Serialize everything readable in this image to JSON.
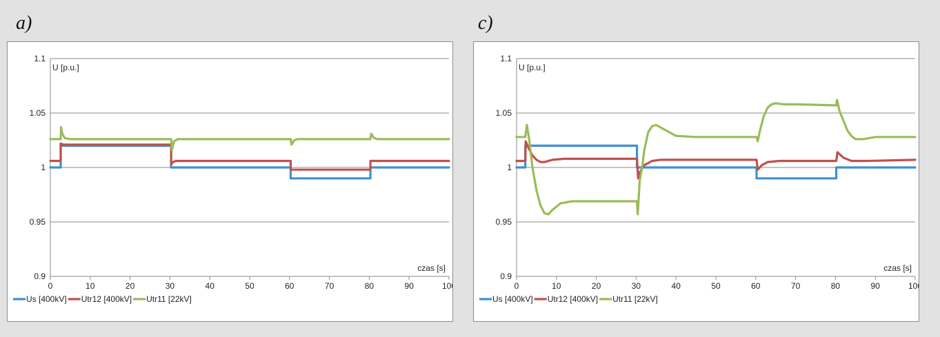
{
  "chart_data": [
    {
      "panel_label": "a)",
      "type": "line",
      "ylabel": "U [p.u.]",
      "xlabel": "czas [s]",
      "xlim": [
        0,
        100
      ],
      "ylim": [
        0.9,
        1.1
      ],
      "xticks": [
        0,
        10,
        20,
        30,
        40,
        50,
        60,
        70,
        80,
        90,
        100
      ],
      "yticks": [
        0.9,
        0.95,
        1,
        1.05,
        1.1
      ],
      "ytick_labels": [
        "0.9",
        "0.95",
        "1",
        "1.05",
        "1.1"
      ],
      "grid": "horizontal",
      "legend_position": "bottom-left",
      "series": [
        {
          "name": "Us [400kV]",
          "color": "#3f8fd2",
          "points": [
            [
              0,
              1.0
            ],
            [
              2.6,
              1.0
            ],
            [
              2.6,
              1.02
            ],
            [
              30.3,
              1.02
            ],
            [
              30.3,
              1.0
            ],
            [
              60.3,
              1.0
            ],
            [
              60.3,
              0.99
            ],
            [
              80.3,
              0.99
            ],
            [
              80.3,
              1.0
            ],
            [
              100,
              1.0
            ]
          ]
        },
        {
          "name": "Utr12 [400kV]",
          "color": "#c0504d",
          "points": [
            [
              0,
              1.006
            ],
            [
              2.6,
              1.006
            ],
            [
              2.6,
              1.022
            ],
            [
              3.2,
              1.021
            ],
            [
              30.3,
              1.021
            ],
            [
              30.3,
              1.003
            ],
            [
              30.8,
              1.005
            ],
            [
              31.5,
              1.006
            ],
            [
              60.3,
              1.006
            ],
            [
              60.3,
              0.998
            ],
            [
              60.8,
              0.998
            ],
            [
              80.3,
              0.998
            ],
            [
              80.3,
              1.006
            ],
            [
              80.8,
              1.006
            ],
            [
              100,
              1.006
            ]
          ]
        },
        {
          "name": "Utr11 [22kV]",
          "color": "#9bbb59",
          "points": [
            [
              0,
              1.026
            ],
            [
              2.6,
              1.026
            ],
            [
              2.7,
              1.037
            ],
            [
              3.0,
              1.031
            ],
            [
              3.6,
              1.027
            ],
            [
              5,
              1.026
            ],
            [
              30.3,
              1.026
            ],
            [
              30.5,
              1.016
            ],
            [
              31.0,
              1.024
            ],
            [
              32,
              1.026
            ],
            [
              60.3,
              1.026
            ],
            [
              60.5,
              1.021
            ],
            [
              61.2,
              1.025
            ],
            [
              62,
              1.026
            ],
            [
              80.3,
              1.026
            ],
            [
              80.5,
              1.031
            ],
            [
              81.2,
              1.027
            ],
            [
              82,
              1.026
            ],
            [
              100,
              1.026
            ]
          ]
        }
      ]
    },
    {
      "panel_label": "c)",
      "type": "line",
      "ylabel": "U [p.u.]",
      "xlabel": "czas [s]",
      "xlim": [
        0,
        100
      ],
      "ylim": [
        0.9,
        1.1
      ],
      "xticks": [
        0,
        10,
        20,
        30,
        40,
        50,
        60,
        70,
        80,
        90,
        100
      ],
      "yticks": [
        0.9,
        0.95,
        1,
        1.05,
        1.1
      ],
      "ytick_labels": [
        "0.9",
        "0.95",
        "1",
        "1.05",
        "1.1"
      ],
      "grid": "horizontal",
      "legend_position": "bottom-left",
      "series": [
        {
          "name": "Us [400kV]",
          "color": "#3f8fd2",
          "points": [
            [
              0,
              1.0
            ],
            [
              2.2,
              1.0
            ],
            [
              2.2,
              1.02
            ],
            [
              30.2,
              1.02
            ],
            [
              30.2,
              1.0
            ],
            [
              60.2,
              1.0
            ],
            [
              60.2,
              0.99
            ],
            [
              80.2,
              0.99
            ],
            [
              80.2,
              1.0
            ],
            [
              100,
              1.0
            ]
          ]
        },
        {
          "name": "Utr12 [400kV]",
          "color": "#c0504d",
          "points": [
            [
              0,
              1.006
            ],
            [
              2.2,
              1.006
            ],
            [
              2.3,
              1.024
            ],
            [
              3,
              1.018
            ],
            [
              4,
              1.011
            ],
            [
              5,
              1.007
            ],
            [
              6,
              1.005
            ],
            [
              7,
              1.005
            ],
            [
              9,
              1.007
            ],
            [
              12,
              1.008
            ],
            [
              30.2,
              1.008
            ],
            [
              30.5,
              0.99
            ],
            [
              31,
              0.996
            ],
            [
              32,
              1.002
            ],
            [
              34,
              1.006
            ],
            [
              36,
              1.007
            ],
            [
              40,
              1.007
            ],
            [
              60.2,
              1.007
            ],
            [
              60.5,
              0.998
            ],
            [
              61.5,
              1.002
            ],
            [
              63,
              1.005
            ],
            [
              66,
              1.006
            ],
            [
              80.2,
              1.006
            ],
            [
              80.5,
              1.014
            ],
            [
              82,
              1.009
            ],
            [
              84,
              1.006
            ],
            [
              88,
              1.006
            ],
            [
              100,
              1.007
            ]
          ]
        },
        {
          "name": "Utr11 [22kV]",
          "color": "#9bbb59",
          "points": [
            [
              0,
              1.028
            ],
            [
              2.2,
              1.028
            ],
            [
              2.6,
              1.039
            ],
            [
              3.2,
              1.025
            ],
            [
              4,
              1.0
            ],
            [
              5,
              0.979
            ],
            [
              6,
              0.965
            ],
            [
              7,
              0.958
            ],
            [
              8,
              0.957
            ],
            [
              9,
              0.961
            ],
            [
              11,
              0.967
            ],
            [
              14,
              0.969
            ],
            [
              20,
              0.969
            ],
            [
              30.2,
              0.969
            ],
            [
              30.4,
              0.957
            ],
            [
              30.9,
              0.988
            ],
            [
              31.5,
              1.0
            ],
            [
              32,
              1.015
            ],
            [
              33,
              1.032
            ],
            [
              34,
              1.038
            ],
            [
              35,
              1.039
            ],
            [
              36,
              1.037
            ],
            [
              38,
              1.033
            ],
            [
              40,
              1.029
            ],
            [
              45,
              1.028
            ],
            [
              60.2,
              1.028
            ],
            [
              60.5,
              1.024
            ],
            [
              61,
              1.033
            ],
            [
              62,
              1.047
            ],
            [
              63,
              1.055
            ],
            [
              64,
              1.058
            ],
            [
              65,
              1.059
            ],
            [
              67,
              1.058
            ],
            [
              70,
              1.058
            ],
            [
              80.2,
              1.057
            ],
            [
              80.4,
              1.062
            ],
            [
              81,
              1.052
            ],
            [
              82,
              1.043
            ],
            [
              83,
              1.034
            ],
            [
              84,
              1.029
            ],
            [
              85,
              1.026
            ],
            [
              87,
              1.026
            ],
            [
              90,
              1.028
            ],
            [
              100,
              1.028
            ]
          ]
        }
      ]
    }
  ]
}
